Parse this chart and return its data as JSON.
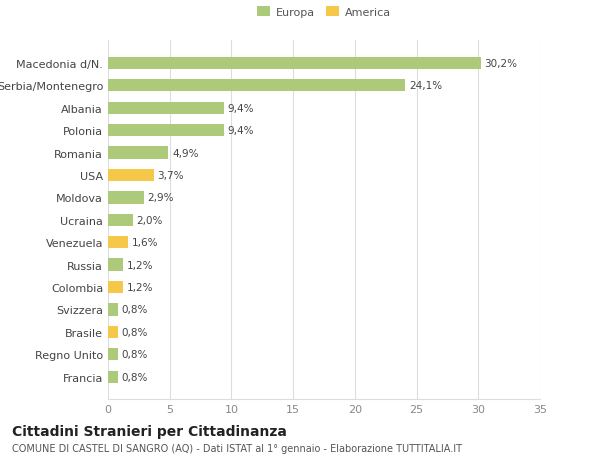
{
  "categories": [
    "Francia",
    "Regno Unito",
    "Brasile",
    "Svizzera",
    "Colombia",
    "Russia",
    "Venezuela",
    "Ucraina",
    "Moldova",
    "USA",
    "Romania",
    "Polonia",
    "Albania",
    "Serbia/Montenegro",
    "Macedonia d/N."
  ],
  "values": [
    0.8,
    0.8,
    0.8,
    0.8,
    1.2,
    1.2,
    1.6,
    2.0,
    2.9,
    3.7,
    4.9,
    9.4,
    9.4,
    24.1,
    30.2
  ],
  "labels": [
    "0,8%",
    "0,8%",
    "0,8%",
    "0,8%",
    "1,2%",
    "1,2%",
    "1,6%",
    "2,0%",
    "2,9%",
    "3,7%",
    "4,9%",
    "9,4%",
    "9,4%",
    "24,1%",
    "30,2%"
  ],
  "colors": [
    "#adc97a",
    "#adc97a",
    "#f5c84a",
    "#adc97a",
    "#f5c84a",
    "#adc97a",
    "#f5c84a",
    "#adc97a",
    "#adc97a",
    "#f5c84a",
    "#adc97a",
    "#adc97a",
    "#adc97a",
    "#adc97a",
    "#adc97a"
  ],
  "europa_color": "#adc97a",
  "america_color": "#f5c84a",
  "title": "Cittadini Stranieri per Cittadinanza",
  "subtitle": "COMUNE DI CASTEL DI SANGRO (AQ) - Dati ISTAT al 1° gennaio - Elaborazione TUTTITALIA.IT",
  "xlim": [
    0,
    35
  ],
  "xticks": [
    0,
    5,
    10,
    15,
    20,
    25,
    30,
    35
  ],
  "bg_color": "#ffffff",
  "grid_color": "#dddddd",
  "bar_height": 0.55,
  "label_fontsize": 7.5,
  "title_fontsize": 10,
  "subtitle_fontsize": 7,
  "tick_fontsize": 8
}
